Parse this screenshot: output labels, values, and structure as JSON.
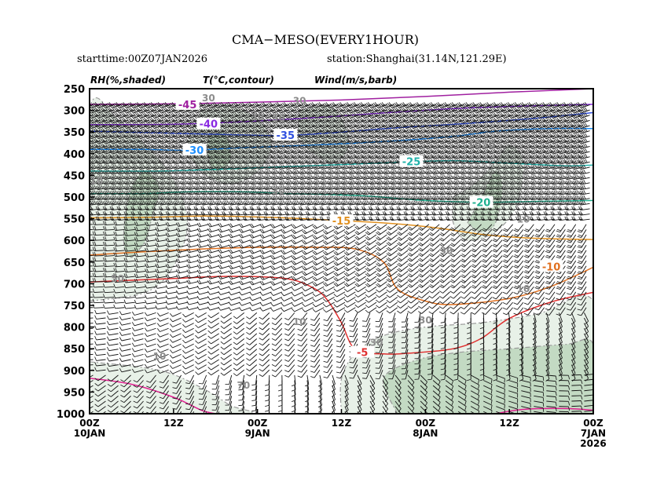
{
  "chart_data": {
    "type": "cross-section",
    "title": "CMA−MESO(EVERY1HOUR)",
    "subtitle_left": "starttime:00Z07JAN2026",
    "subtitle_right": "station:Shanghai(31.14N,121.29E)",
    "legend_labels": [
      "RH(%,shaded)",
      "T(°C,contour)",
      "Wind(m/s,barb)"
    ],
    "y_axis": {
      "label": "",
      "reverse": true,
      "range": [
        250,
        1000
      ],
      "ticks": [
        250,
        300,
        350,
        400,
        450,
        500,
        550,
        600,
        650,
        700,
        750,
        800,
        850,
        900,
        950,
        1000
      ]
    },
    "x_axis": {
      "label": "",
      "reverse": true,
      "range_hours_from_start": [
        72,
        0
      ],
      "ticks": [
        {
          "hour": 72,
          "line1": "00Z",
          "line2": "10JAN",
          "line3": ""
        },
        {
          "hour": 60,
          "line1": "12Z",
          "line2": "",
          "line3": ""
        },
        {
          "hour": 48,
          "line1": "00Z",
          "line2": "9JAN",
          "line3": ""
        },
        {
          "hour": 36,
          "line1": "12Z",
          "line2": "",
          "line3": ""
        },
        {
          "hour": 24,
          "line1": "00Z",
          "line2": "8JAN",
          "line3": ""
        },
        {
          "hour": 12,
          "line1": "12Z",
          "line2": "",
          "line3": ""
        },
        {
          "hour": 0,
          "line1": "00Z",
          "line2": "7JAN",
          "line3": "2026"
        }
      ]
    },
    "temperature_contours": [
      {
        "value": -45,
        "label": "-45",
        "color": "#a020a0",
        "points": [
          [
            72,
            286
          ],
          [
            60,
            285
          ],
          [
            48,
            281
          ],
          [
            36,
            276
          ],
          [
            24,
            268
          ],
          [
            12,
            258
          ],
          [
            0,
            250
          ]
        ],
        "label_at": [
          58,
          286
        ]
      },
      {
        "value": -40,
        "label": "-40",
        "color": "#8a2be2",
        "points": [
          [
            72,
            333
          ],
          [
            60,
            332
          ],
          [
            50,
            326
          ],
          [
            40,
            317
          ],
          [
            30,
            306
          ],
          [
            20,
            296
          ],
          [
            10,
            290
          ],
          [
            0,
            286
          ]
        ],
        "label_at": [
          55,
          331
        ]
      },
      {
        "value": -35,
        "label": "-35",
        "color": "#3050e0",
        "points": [
          [
            72,
            348
          ],
          [
            62,
            352
          ],
          [
            52,
            356
          ],
          [
            44,
            358
          ],
          [
            36,
            350
          ],
          [
            28,
            340
          ],
          [
            18,
            330
          ],
          [
            8,
            318
          ],
          [
            0,
            305
          ]
        ],
        "label_at": [
          44,
          357
        ]
      },
      {
        "value": -30,
        "label": "-30",
        "color": "#1e90ff",
        "points": [
          [
            72,
            390
          ],
          [
            64,
            390
          ],
          [
            58,
            392
          ],
          [
            50,
            386
          ],
          [
            40,
            380
          ],
          [
            30,
            372
          ],
          [
            20,
            360
          ],
          [
            14,
            348
          ],
          [
            6,
            342
          ],
          [
            0,
            342
          ]
        ],
        "label_at": [
          57,
          391
        ]
      },
      {
        "value": -25,
        "label": "-25",
        "color": "#20b2aa",
        "points": [
          [
            72,
            440
          ],
          [
            62,
            440
          ],
          [
            54,
            436
          ],
          [
            44,
            430
          ],
          [
            36,
            425
          ],
          [
            28,
            420
          ],
          [
            20,
            416
          ],
          [
            12,
            422
          ],
          [
            4,
            428
          ],
          [
            0,
            426
          ]
        ],
        "label_at": [
          26,
          418
        ]
      },
      {
        "value": -20,
        "label": "-20",
        "color": "#20b090",
        "points": [
          [
            72,
            492
          ],
          [
            64,
            492
          ],
          [
            58,
            488
          ],
          [
            50,
            488
          ],
          [
            44,
            492
          ],
          [
            38,
            494
          ],
          [
            32,
            498
          ],
          [
            24,
            508
          ],
          [
            16,
            512
          ],
          [
            8,
            510
          ],
          [
            0,
            508
          ]
        ],
        "label_at": [
          16,
          512
        ]
      },
      {
        "value": -15,
        "label": "-15",
        "color": "#e09020",
        "points": [
          [
            72,
            548
          ],
          [
            64,
            547
          ],
          [
            56,
            544
          ],
          [
            48,
            546
          ],
          [
            40,
            551
          ],
          [
            34,
            556
          ],
          [
            28,
            562
          ],
          [
            22,
            572
          ],
          [
            16,
            586
          ],
          [
            10,
            594
          ],
          [
            4,
            597
          ],
          [
            0,
            598
          ]
        ],
        "label_at": [
          36,
          554
        ]
      },
      {
        "value": -10,
        "label": "-10",
        "color": "#e07020",
        "points": [
          [
            72,
            634
          ],
          [
            64,
            626
          ],
          [
            56,
            620
          ],
          [
            48,
            616
          ],
          [
            40,
            616
          ],
          [
            34,
            620
          ],
          [
            30,
            650
          ],
          [
            28,
            712
          ],
          [
            24,
            740
          ],
          [
            20,
            748
          ],
          [
            12,
            734
          ],
          [
            6,
            706
          ],
          [
            0,
            662
          ]
        ],
        "label_at": [
          6,
          660
        ]
      },
      {
        "value": -5,
        "label": "-5",
        "color": "#e03030",
        "points": [
          [
            72,
            696
          ],
          [
            66,
            692
          ],
          [
            60,
            688
          ],
          [
            52,
            683
          ],
          [
            44,
            688
          ],
          [
            40,
            710
          ],
          [
            38,
            738
          ],
          [
            36,
            790
          ],
          [
            34,
            852
          ],
          [
            30,
            862
          ],
          [
            26,
            860
          ],
          [
            20,
            850
          ],
          [
            16,
            826
          ],
          [
            12,
            780
          ],
          [
            6,
            742
          ],
          [
            0,
            720
          ]
        ],
        "label_at": [
          33,
          858
        ]
      },
      {
        "value": 0,
        "label": "",
        "color": "#e02090",
        "points": [
          [
            72,
            918
          ],
          [
            66,
            932
          ],
          [
            60,
            962
          ],
          [
            56,
            992
          ],
          [
            54,
            1000
          ]
        ],
        "label_at": null
      },
      {
        "value": 0,
        "label": "",
        "color": "#e02090",
        "points": [
          [
            14,
            1000
          ],
          [
            10,
            990
          ],
          [
            4,
            988
          ],
          [
            0,
            992
          ]
        ],
        "label_at": null
      }
    ],
    "rh_labels": [
      {
        "text": "30",
        "hour": 55,
        "p": 272
      },
      {
        "text": "30",
        "hour": 48,
        "p": 315
      },
      {
        "text": "50",
        "hour": 45,
        "p": 318
      },
      {
        "text": "30",
        "hour": 42,
        "p": 278
      },
      {
        "text": "10",
        "hour": 17,
        "p": 378
      },
      {
        "text": "30",
        "hour": 15,
        "p": 378
      },
      {
        "text": "10",
        "hour": 71,
        "p": 463
      },
      {
        "text": "30",
        "hour": 45,
        "p": 486
      },
      {
        "text": "10",
        "hour": 10,
        "p": 552
      },
      {
        "text": "30",
        "hour": 21,
        "p": 624
      },
      {
        "text": "10",
        "hour": 10,
        "p": 712
      },
      {
        "text": "10",
        "hour": 42,
        "p": 788
      },
      {
        "text": "30",
        "hour": 24,
        "p": 784
      },
      {
        "text": "10",
        "hour": 62,
        "p": 868
      },
      {
        "text": "50",
        "hour": 68,
        "p": 688
      },
      {
        "text": "30",
        "hour": 31,
        "p": 836
      },
      {
        "text": "70",
        "hour": 50,
        "p": 935
      }
    ],
    "rh_shaded_regions": [
      {
        "level": 50,
        "color": "#e6f0e6",
        "points": [
          [
            72,
            740
          ],
          [
            64,
            720
          ],
          [
            60,
            660
          ],
          [
            58,
            560
          ],
          [
            60,
            460
          ],
          [
            64,
            380
          ],
          [
            68,
            320
          ],
          [
            72,
            300
          ]
        ]
      },
      {
        "level": 70,
        "color": "#bcd6bc",
        "points": [
          [
            66,
            640
          ],
          [
            64,
            600
          ],
          [
            63,
            540
          ],
          [
            62,
            480
          ],
          [
            64,
            440
          ],
          [
            66,
            480
          ],
          [
            67,
            560
          ],
          [
            67,
            620
          ]
        ]
      },
      {
        "level": 50,
        "color": "#e6f0e6",
        "points": [
          [
            56,
            300
          ],
          [
            52,
            290
          ],
          [
            48,
            320
          ],
          [
            46,
            380
          ],
          [
            48,
            440
          ],
          [
            52,
            470
          ],
          [
            56,
            440
          ],
          [
            58,
            380
          ]
        ]
      },
      {
        "level": 70,
        "color": "#bcd6bc",
        "points": [
          [
            55,
            360
          ],
          [
            53,
            350
          ],
          [
            52,
            380
          ],
          [
            52,
            420
          ],
          [
            54,
            440
          ],
          [
            55,
            410
          ]
        ]
      },
      {
        "level": 50,
        "color": "#e6f0e6",
        "points": [
          [
            42,
            300
          ],
          [
            38,
            290
          ],
          [
            36,
            320
          ],
          [
            35,
            380
          ],
          [
            37,
            420
          ],
          [
            40,
            400
          ],
          [
            42,
            360
          ]
        ]
      },
      {
        "level": 50,
        "color": "#e6f0e6",
        "points": [
          [
            20,
            500
          ],
          [
            17,
            470
          ],
          [
            14,
            420
          ],
          [
            12,
            380
          ],
          [
            10,
            420
          ],
          [
            11,
            520
          ],
          [
            14,
            580
          ],
          [
            18,
            600
          ],
          [
            20,
            560
          ]
        ]
      },
      {
        "level": 70,
        "color": "#bcd6bc",
        "points": [
          [
            18,
            560
          ],
          [
            16,
            500
          ],
          [
            14,
            440
          ],
          [
            13,
            480
          ],
          [
            14,
            560
          ],
          [
            16,
            580
          ]
        ]
      },
      {
        "level": 50,
        "color": "#e6f0e6",
        "points": [
          [
            36,
            1000
          ],
          [
            36,
            920
          ],
          [
            34,
            860
          ],
          [
            30,
            820
          ],
          [
            24,
            800
          ],
          [
            16,
            790
          ],
          [
            8,
            770
          ],
          [
            0,
            740
          ],
          [
            0,
            1000
          ]
        ]
      },
      {
        "level": 70,
        "color": "#bcd6bc",
        "points": [
          [
            28,
            1000
          ],
          [
            30,
            920
          ],
          [
            26,
            880
          ],
          [
            20,
            860
          ],
          [
            12,
            850
          ],
          [
            4,
            840
          ],
          [
            0,
            840
          ],
          [
            0,
            1000
          ]
        ]
      },
      {
        "level": 50,
        "color": "#e6f0e6",
        "points": [
          [
            72,
            880
          ],
          [
            62,
            900
          ],
          [
            56,
            940
          ],
          [
            52,
            980
          ],
          [
            50,
            1000
          ],
          [
            72,
            1000
          ]
        ]
      }
    ]
  },
  "colors": {
    "background": "#ffffff",
    "rh_light": "#e6f0e6",
    "rh_mid": "#bcd6bc",
    "rh_contour": "#999999",
    "barb": "#111111",
    "axis": "#000000"
  }
}
